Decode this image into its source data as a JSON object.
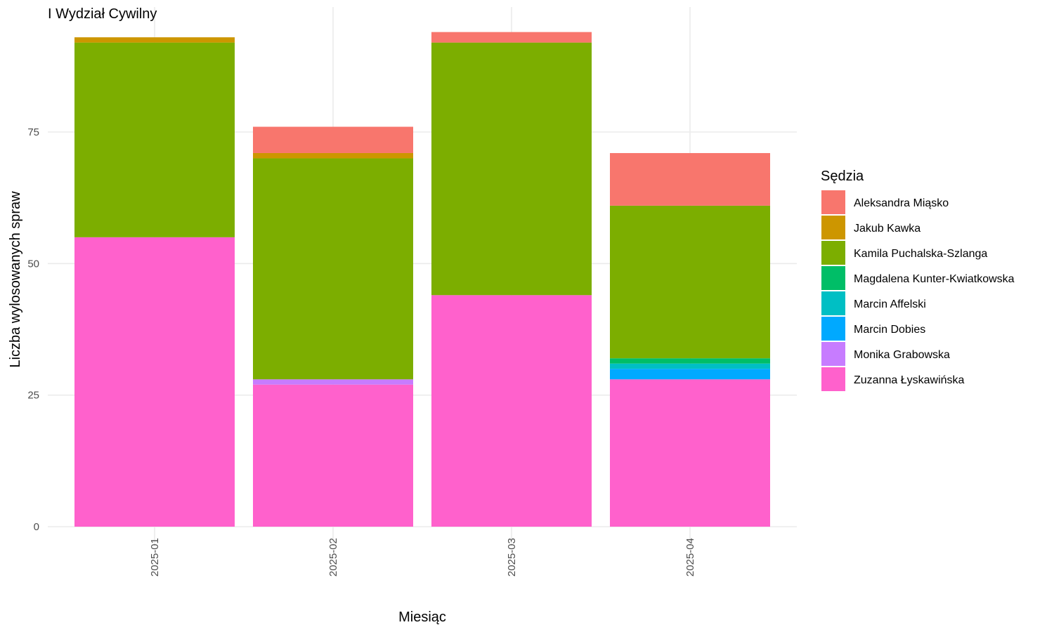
{
  "chart_data": {
    "type": "bar",
    "stacked": true,
    "title": "I Wydział Cywilny",
    "xlabel": "Miesiąc",
    "ylabel": "Liczba wylosowanych spraw",
    "categories": [
      "2025-01",
      "2025-02",
      "2025-03",
      "2025-04"
    ],
    "ylim": [
      0,
      98
    ],
    "yticks": [
      0,
      25,
      50,
      75
    ],
    "grid": true,
    "legend": {
      "title": "Sędzia",
      "position": "right"
    },
    "series": [
      {
        "name": "Zuzanna Łyskawińska",
        "color": "#FF61CC",
        "values": [
          55,
          27,
          44,
          28
        ]
      },
      {
        "name": "Monika Grabowska",
        "color": "#C77CFF",
        "values": [
          0,
          1,
          0,
          0
        ]
      },
      {
        "name": "Marcin Dobies",
        "color": "#00A9FF",
        "values": [
          0,
          0,
          0,
          2
        ]
      },
      {
        "name": "Marcin Affelski",
        "color": "#00BFC4",
        "values": [
          0,
          0,
          0,
          1
        ]
      },
      {
        "name": "Magdalena Kunter-Kwiatkowska",
        "color": "#00BE67",
        "values": [
          0,
          0,
          0,
          1
        ]
      },
      {
        "name": "Kamila Puchalska-Szlanga",
        "color": "#7CAE00",
        "values": [
          37,
          42,
          48,
          29
        ]
      },
      {
        "name": "Jakub Kawka",
        "color": "#CD9600",
        "values": [
          1,
          1,
          0,
          0
        ]
      },
      {
        "name": "Aleksandra Miąsko",
        "color": "#F8766D",
        "values": [
          0,
          5,
          2,
          10
        ]
      }
    ],
    "legend_order": [
      "Aleksandra Miąsko",
      "Jakub Kawka",
      "Kamila Puchalska-Szlanga",
      "Magdalena Kunter-Kwiatkowska",
      "Marcin Affelski",
      "Marcin Dobies",
      "Monika Grabowska",
      "Zuzanna Łyskawińska"
    ]
  }
}
